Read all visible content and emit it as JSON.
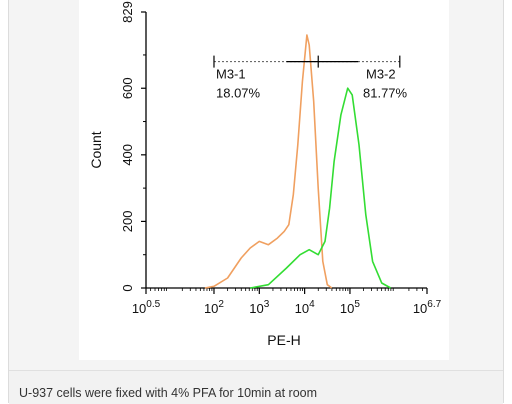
{
  "figure": {
    "caption": "U-937 cells were fixed with 4% PFA for 10min at room"
  },
  "colors": {
    "series_1": "#f0a060",
    "series_2": "#33dd33",
    "axis": "#000000"
  },
  "chart_data": {
    "type": "line",
    "title": "",
    "xlabel": "PE-H",
    "ylabel": "Count",
    "x_scale": "log10",
    "xlim": [
      0.5,
      6.7
    ],
    "ylim": [
      0,
      829
    ],
    "x_tick_labels": [
      {
        "base": "10",
        "exp": "0.5",
        "value": 0.5
      },
      {
        "base": "10",
        "exp": "2",
        "value": 2
      },
      {
        "base": "10",
        "exp": "3",
        "value": 3
      },
      {
        "base": "10",
        "exp": "4",
        "value": 4
      },
      {
        "base": "10",
        "exp": "5",
        "value": 5
      },
      {
        "base": "10",
        "exp": "6.7",
        "value": 6.7
      }
    ],
    "y_ticks": [
      0,
      200,
      400,
      600,
      829
    ],
    "y_tick_labels": [
      "0",
      "200",
      "400",
      "600",
      "829"
    ],
    "series": [
      {
        "color": "#f0a060",
        "points": [
          [
            1.8,
            0
          ],
          [
            2.0,
            5
          ],
          [
            2.3,
            30
          ],
          [
            2.6,
            90
          ],
          [
            2.8,
            120
          ],
          [
            3.0,
            140
          ],
          [
            3.2,
            130
          ],
          [
            3.4,
            150
          ],
          [
            3.55,
            170
          ],
          [
            3.65,
            190
          ],
          [
            3.75,
            280
          ],
          [
            3.85,
            430
          ],
          [
            3.95,
            620
          ],
          [
            4.05,
            760
          ],
          [
            4.1,
            730
          ],
          [
            4.2,
            560
          ],
          [
            4.3,
            300
          ],
          [
            4.4,
            80
          ],
          [
            4.5,
            10
          ],
          [
            4.6,
            0
          ]
        ]
      },
      {
        "color": "#33dd33",
        "points": [
          [
            2.8,
            0
          ],
          [
            3.2,
            10
          ],
          [
            3.6,
            60
          ],
          [
            3.9,
            100
          ],
          [
            4.1,
            115
          ],
          [
            4.3,
            100
          ],
          [
            4.45,
            140
          ],
          [
            4.55,
            240
          ],
          [
            4.65,
            380
          ],
          [
            4.8,
            520
          ],
          [
            4.95,
            600
          ],
          [
            5.05,
            580
          ],
          [
            5.2,
            430
          ],
          [
            5.35,
            220
          ],
          [
            5.5,
            80
          ],
          [
            5.7,
            15
          ],
          [
            5.9,
            0
          ]
        ]
      }
    ],
    "gates": [
      {
        "name": "M3-1",
        "percent": "18.07%",
        "from": 2.0,
        "to": 4.3
      },
      {
        "name": "M3-2",
        "percent": "81.77%",
        "from": 4.3,
        "to": 6.1
      }
    ],
    "gate_level": 680,
    "gate_marker": 4.3
  }
}
